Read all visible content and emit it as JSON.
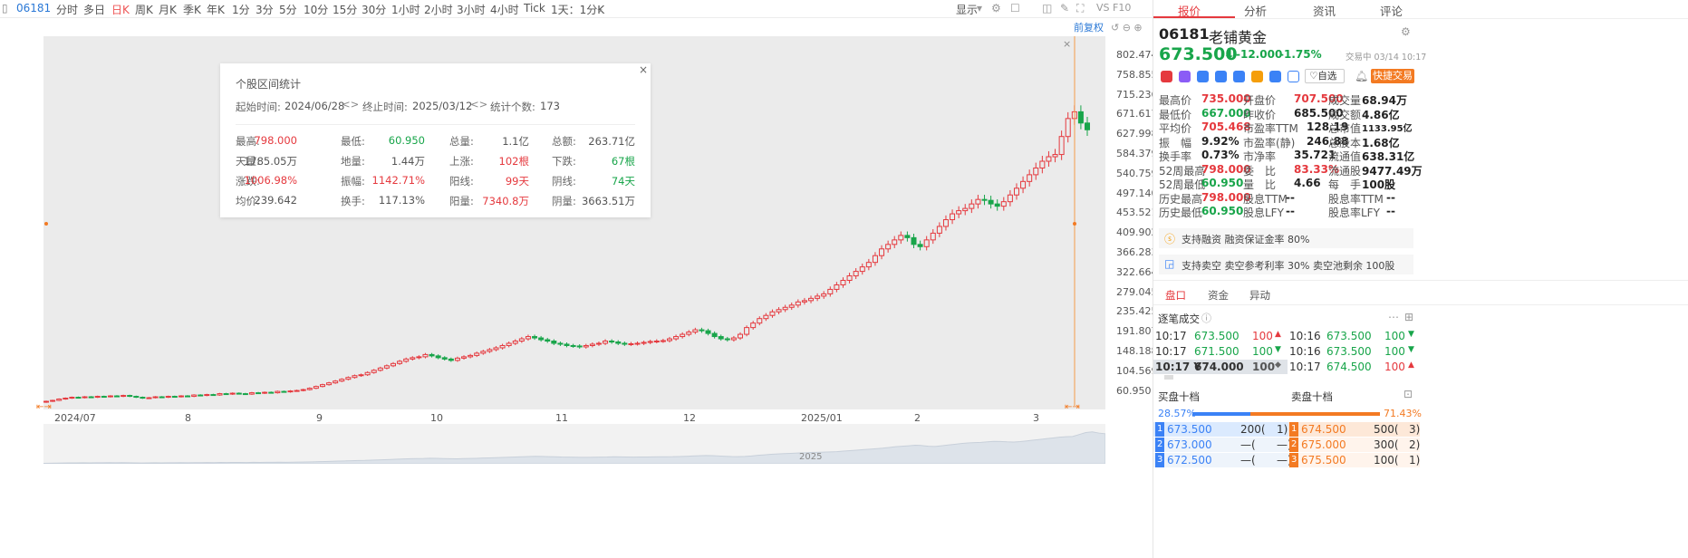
{
  "toolbar": {
    "code": "06181",
    "periods": [
      "分时",
      "多日",
      "日K",
      "周K",
      "月K",
      "季K",
      "年K",
      "1分",
      "3分",
      "5分",
      "10分",
      "15分",
      "30分",
      "1小时",
      "2小时",
      "3小时",
      "4小时",
      "Tick",
      "1天：1分K"
    ],
    "display": "显示",
    "extra": "VS F10",
    "restore": "前复权"
  },
  "chart_data": {
    "type": "candlestick",
    "title": "",
    "y_ticks": [
      "802.474",
      "758.855",
      "715.236",
      "671.617",
      "627.998",
      "584.379",
      "540.759",
      "497.140",
      "453.521",
      "409.902",
      "366.283",
      "322.664",
      "279.045",
      "235.425",
      "191.807",
      "148.188",
      "104.569",
      "60.950"
    ],
    "x_ticks": [
      "2024/07",
      "8",
      "9",
      "10",
      "11",
      "12",
      "2025/01",
      "2",
      "3"
    ],
    "ylim": [
      60.95,
      802.474
    ],
    "navigator_label": "2025",
    "closes": [
      71,
      73,
      76,
      78,
      80,
      79,
      81,
      80,
      82,
      81,
      83,
      82,
      84,
      82,
      80,
      78,
      79,
      81,
      80,
      82,
      81,
      83,
      82,
      85,
      84,
      86,
      85,
      88,
      87,
      89,
      88,
      87,
      90,
      89,
      91,
      90,
      93,
      92,
      94,
      95,
      97,
      100,
      104,
      108,
      112,
      116,
      120,
      124,
      128,
      130,
      135,
      140,
      145,
      150,
      155,
      160,
      165,
      168,
      170,
      175,
      172,
      168,
      165,
      162,
      167,
      170,
      173,
      178,
      182,
      186,
      190,
      195,
      200,
      205,
      210,
      215,
      212,
      208,
      205,
      200,
      198,
      195,
      194,
      192,
      195,
      198,
      200,
      205,
      203,
      200,
      198,
      199,
      200,
      202,
      204,
      205,
      206,
      210,
      215,
      220,
      225,
      230,
      228,
      222,
      215,
      210,
      208,
      212,
      220,
      235,
      245,
      255,
      262,
      270,
      275,
      280,
      285,
      292,
      295,
      300,
      305,
      310,
      320,
      330,
      340,
      350,
      360,
      370,
      380,
      395,
      410,
      420,
      430,
      440,
      435,
      420,
      415,
      430,
      445,
      460,
      475,
      488,
      495,
      500,
      510,
      520,
      518,
      510,
      505,
      515,
      530,
      545,
      560,
      575,
      590,
      605,
      615,
      620,
      660,
      700,
      715,
      690,
      675
    ]
  },
  "stats": {
    "title": "个股区间统计",
    "start_label": "起始时间:",
    "start": "2024/06/28",
    "end_label": "终止时间:",
    "end": "2025/03/12",
    "count_label": "统计个数:",
    "count": "173",
    "rows": [
      [
        [
          "最高:",
          "798.000"
        ],
        [
          "最低:",
          "60.950"
        ],
        [
          "总量:",
          "1.1亿"
        ],
        [
          "总额:",
          "263.71亿"
        ]
      ],
      [
        [
          "天量:",
          "1785.05万"
        ],
        [
          "地量:",
          "1.44万"
        ],
        [
          "上涨:",
          "102根"
        ],
        [
          "下跌:",
          "67根"
        ]
      ],
      [
        [
          "涨跌:",
          "1006.98%"
        ],
        [
          "振幅:",
          "1142.71%"
        ],
        [
          "阳线:",
          "99天"
        ],
        [
          "阴线:",
          "74天"
        ]
      ],
      [
        [
          "均价:",
          "239.642"
        ],
        [
          "换手:",
          "117.13%"
        ],
        [
          "阳量:",
          "7340.8万"
        ],
        [
          "阴量:",
          "3663.51万"
        ]
      ]
    ]
  },
  "right": {
    "tabs": [
      "报价",
      "分析",
      "资讯",
      "评论"
    ],
    "code": "06181",
    "name": "老铺黄金",
    "price": "673.500",
    "change": "-12.000",
    "pct": "-1.75%",
    "status": "交易中 03/14 10:17",
    "self_select": "自选",
    "quick_trade": "快捷交易",
    "quote": [
      [
        "最高价",
        "735.000",
        "开盘价",
        "707.500",
        "成交量",
        "68.94万"
      ],
      [
        "最低价",
        "667.000",
        "昨收价",
        "685.500",
        "成交额",
        "4.86亿"
      ],
      [
        "平均价",
        "705.468",
        "市盈率TTM",
        "128.19",
        "总市值",
        "1133.95亿"
      ],
      [
        "振　幅",
        "9.92%",
        "市盈率(静)",
        "246.88",
        "总股本",
        "1.68亿"
      ],
      [
        "换手率",
        "0.73%",
        "市净率",
        "35.721",
        "流通值",
        "638.31亿"
      ],
      [
        "52周最高",
        "798.000",
        "委　比",
        "83.33%",
        "流通股",
        "9477.49万"
      ],
      [
        "52周最低",
        "60.950",
        "量　比",
        "4.66",
        "每　手",
        "100股"
      ],
      [
        "历史最高",
        "798.000",
        "股息TTM",
        "--",
        "股息率TTM",
        "--"
      ],
      [
        "历史最低",
        "60.950",
        "股息LFY",
        "--",
        "股息率LFY",
        "--"
      ]
    ],
    "margin": "支持融资  融资保证金率 80%",
    "short": "支持卖空  卖空参考利率 30%  卖空池剩余 100股",
    "subtabs": [
      "盘口",
      "资金",
      "异动"
    ],
    "ticks_title": "逐笔成交",
    "ticks": [
      [
        "10:17",
        "673.500",
        "100",
        "10:16",
        "673.500",
        "100"
      ],
      [
        "10:17",
        "671.500",
        "100",
        "10:16",
        "673.500",
        "100"
      ],
      [
        "10:17 Y",
        "674.000",
        "100",
        "10:17",
        "674.500",
        "100"
      ]
    ],
    "buy_title": "买盘十档",
    "sell_title": "卖盘十档",
    "buy_pct": "28.57%",
    "sell_pct": "71.43%",
    "book": [
      [
        "1",
        "673.500",
        "200(",
        "1)",
        "1",
        "674.500",
        "500(",
        "3)"
      ],
      [
        "2",
        "673.000",
        "—(",
        "—)",
        "2",
        "675.000",
        "300(",
        "2)"
      ],
      [
        "3",
        "672.500",
        "—(",
        "—)",
        "3",
        "675.500",
        "100(",
        "1)"
      ]
    ]
  }
}
